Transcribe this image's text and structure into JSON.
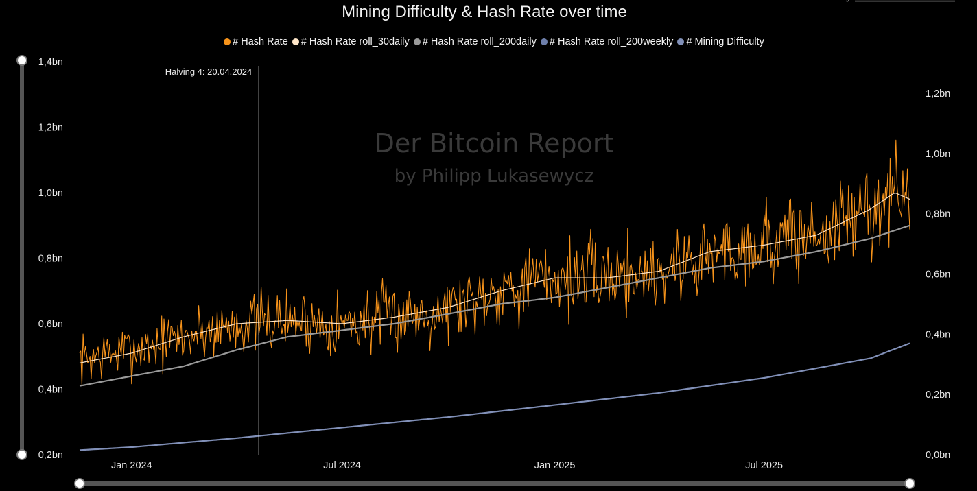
{
  "top_right": {
    "label": "g"
  },
  "chart_data": {
    "type": "line",
    "title": "Mining Difficulty & Hash Rate over time",
    "watermark": {
      "line1": "Der Bitcoin Report",
      "line2": "by Philipp Lukasewycz"
    },
    "legend_position": "top-center",
    "x_range": [
      "2023-11-17",
      "2025-11-04"
    ],
    "x_ticks": [
      {
        "date": "2024-01-01",
        "label": "Jan 2024"
      },
      {
        "date": "2024-07-01",
        "label": "Jul 2024"
      },
      {
        "date": "2025-01-01",
        "label": "Jan 2025"
      },
      {
        "date": "2025-07-01",
        "label": "Jul 2025"
      }
    ],
    "y_left": {
      "min": 0.2,
      "max": 1.4,
      "ticks": [
        {
          "value": 1.4,
          "label": "1,4bn"
        },
        {
          "value": 1.2,
          "label": "1,2bn"
        },
        {
          "value": 1.0,
          "label": "1,0bn"
        },
        {
          "value": 0.8,
          "label": "0,8bn"
        },
        {
          "value": 0.6,
          "label": "0,6bn"
        },
        {
          "value": 0.4,
          "label": "0,4bn"
        },
        {
          "value": 0.2,
          "label": "0,2bn"
        }
      ]
    },
    "y_right": {
      "min": 0.0,
      "max": 1.3,
      "ticks": [
        {
          "value": 1.2,
          "label": "1,2bn"
        },
        {
          "value": 1.0,
          "label": "1,0bn"
        },
        {
          "value": 0.8,
          "label": "0,8bn"
        },
        {
          "value": 0.6,
          "label": "0,6bn"
        },
        {
          "value": 0.4,
          "label": "0,4bn"
        },
        {
          "value": 0.2,
          "label": "0,2bn"
        },
        {
          "value": 0.0,
          "label": "0,0bn"
        }
      ]
    },
    "annotation": {
      "label": "Halving 4: 20.04.2024",
      "date": "2024-04-20"
    },
    "series": [
      {
        "name": "# Hash Rate",
        "color": "#f7931a",
        "axis": "left",
        "values_source": "daily",
        "seed": 7,
        "noise_amplitude": 0.055,
        "points": [
          [
            "2023-11-17",
            0.49
          ],
          [
            "2024-01-01",
            0.52
          ],
          [
            "2024-02-15",
            0.56
          ],
          [
            "2024-04-01",
            0.6
          ],
          [
            "2024-05-15",
            0.61
          ],
          [
            "2024-07-01",
            0.6
          ],
          [
            "2024-08-15",
            0.62
          ],
          [
            "2024-10-01",
            0.65
          ],
          [
            "2024-11-15",
            0.71
          ],
          [
            "2025-01-01",
            0.74
          ],
          [
            "2025-02-15",
            0.75
          ],
          [
            "2025-04-01",
            0.76
          ],
          [
            "2025-05-15",
            0.81
          ],
          [
            "2025-07-01",
            0.85
          ],
          [
            "2025-08-15",
            0.87
          ],
          [
            "2025-10-01",
            0.95
          ],
          [
            "2025-10-22",
            1.0
          ],
          [
            "2025-11-04",
            0.98
          ]
        ]
      },
      {
        "name": "# Hash Rate roll_30daily",
        "color": "#ffe6c8",
        "axis": "left",
        "points": [
          [
            "2023-11-17",
            0.48
          ],
          [
            "2024-01-01",
            0.51
          ],
          [
            "2024-02-15",
            0.56
          ],
          [
            "2024-04-01",
            0.6
          ],
          [
            "2024-05-15",
            0.61
          ],
          [
            "2024-07-01",
            0.6
          ],
          [
            "2024-08-15",
            0.62
          ],
          [
            "2024-10-01",
            0.65
          ],
          [
            "2024-11-15",
            0.7
          ],
          [
            "2025-01-01",
            0.74
          ],
          [
            "2025-02-15",
            0.74
          ],
          [
            "2025-04-01",
            0.76
          ],
          [
            "2025-05-15",
            0.82
          ],
          [
            "2025-07-01",
            0.84
          ],
          [
            "2025-08-15",
            0.87
          ],
          [
            "2025-10-01",
            0.95
          ],
          [
            "2025-10-22",
            1.0
          ],
          [
            "2025-11-04",
            0.98
          ]
        ]
      },
      {
        "name": "# Hash Rate roll_200daily",
        "color": "#9a9a9a",
        "axis": "left",
        "points": [
          [
            "2023-11-17",
            0.41
          ],
          [
            "2024-01-01",
            0.44
          ],
          [
            "2024-02-15",
            0.47
          ],
          [
            "2024-04-01",
            0.52
          ],
          [
            "2024-05-15",
            0.56
          ],
          [
            "2024-07-01",
            0.58
          ],
          [
            "2024-08-15",
            0.6
          ],
          [
            "2024-10-01",
            0.63
          ],
          [
            "2024-11-15",
            0.66
          ],
          [
            "2025-01-01",
            0.68
          ],
          [
            "2025-02-15",
            0.71
          ],
          [
            "2025-04-01",
            0.74
          ],
          [
            "2025-05-15",
            0.77
          ],
          [
            "2025-07-01",
            0.79
          ],
          [
            "2025-08-15",
            0.82
          ],
          [
            "2025-10-01",
            0.86
          ],
          [
            "2025-11-04",
            0.9
          ]
        ]
      },
      {
        "name": "# Hash Rate roll_200weekly",
        "color": "#6e7fab",
        "axis": "left",
        "points": []
      },
      {
        "name": "# Mining Difficulty",
        "color": "#8190b8",
        "axis": "right",
        "points": [
          [
            "2023-11-17",
            0.015
          ],
          [
            "2024-01-01",
            0.025
          ],
          [
            "2024-04-01",
            0.055
          ],
          [
            "2024-07-01",
            0.09
          ],
          [
            "2024-10-01",
            0.125
          ],
          [
            "2025-01-01",
            0.165
          ],
          [
            "2025-04-01",
            0.205
          ],
          [
            "2025-07-01",
            0.255
          ],
          [
            "2025-10-01",
            0.32
          ],
          [
            "2025-11-04",
            0.37
          ]
        ]
      }
    ]
  }
}
